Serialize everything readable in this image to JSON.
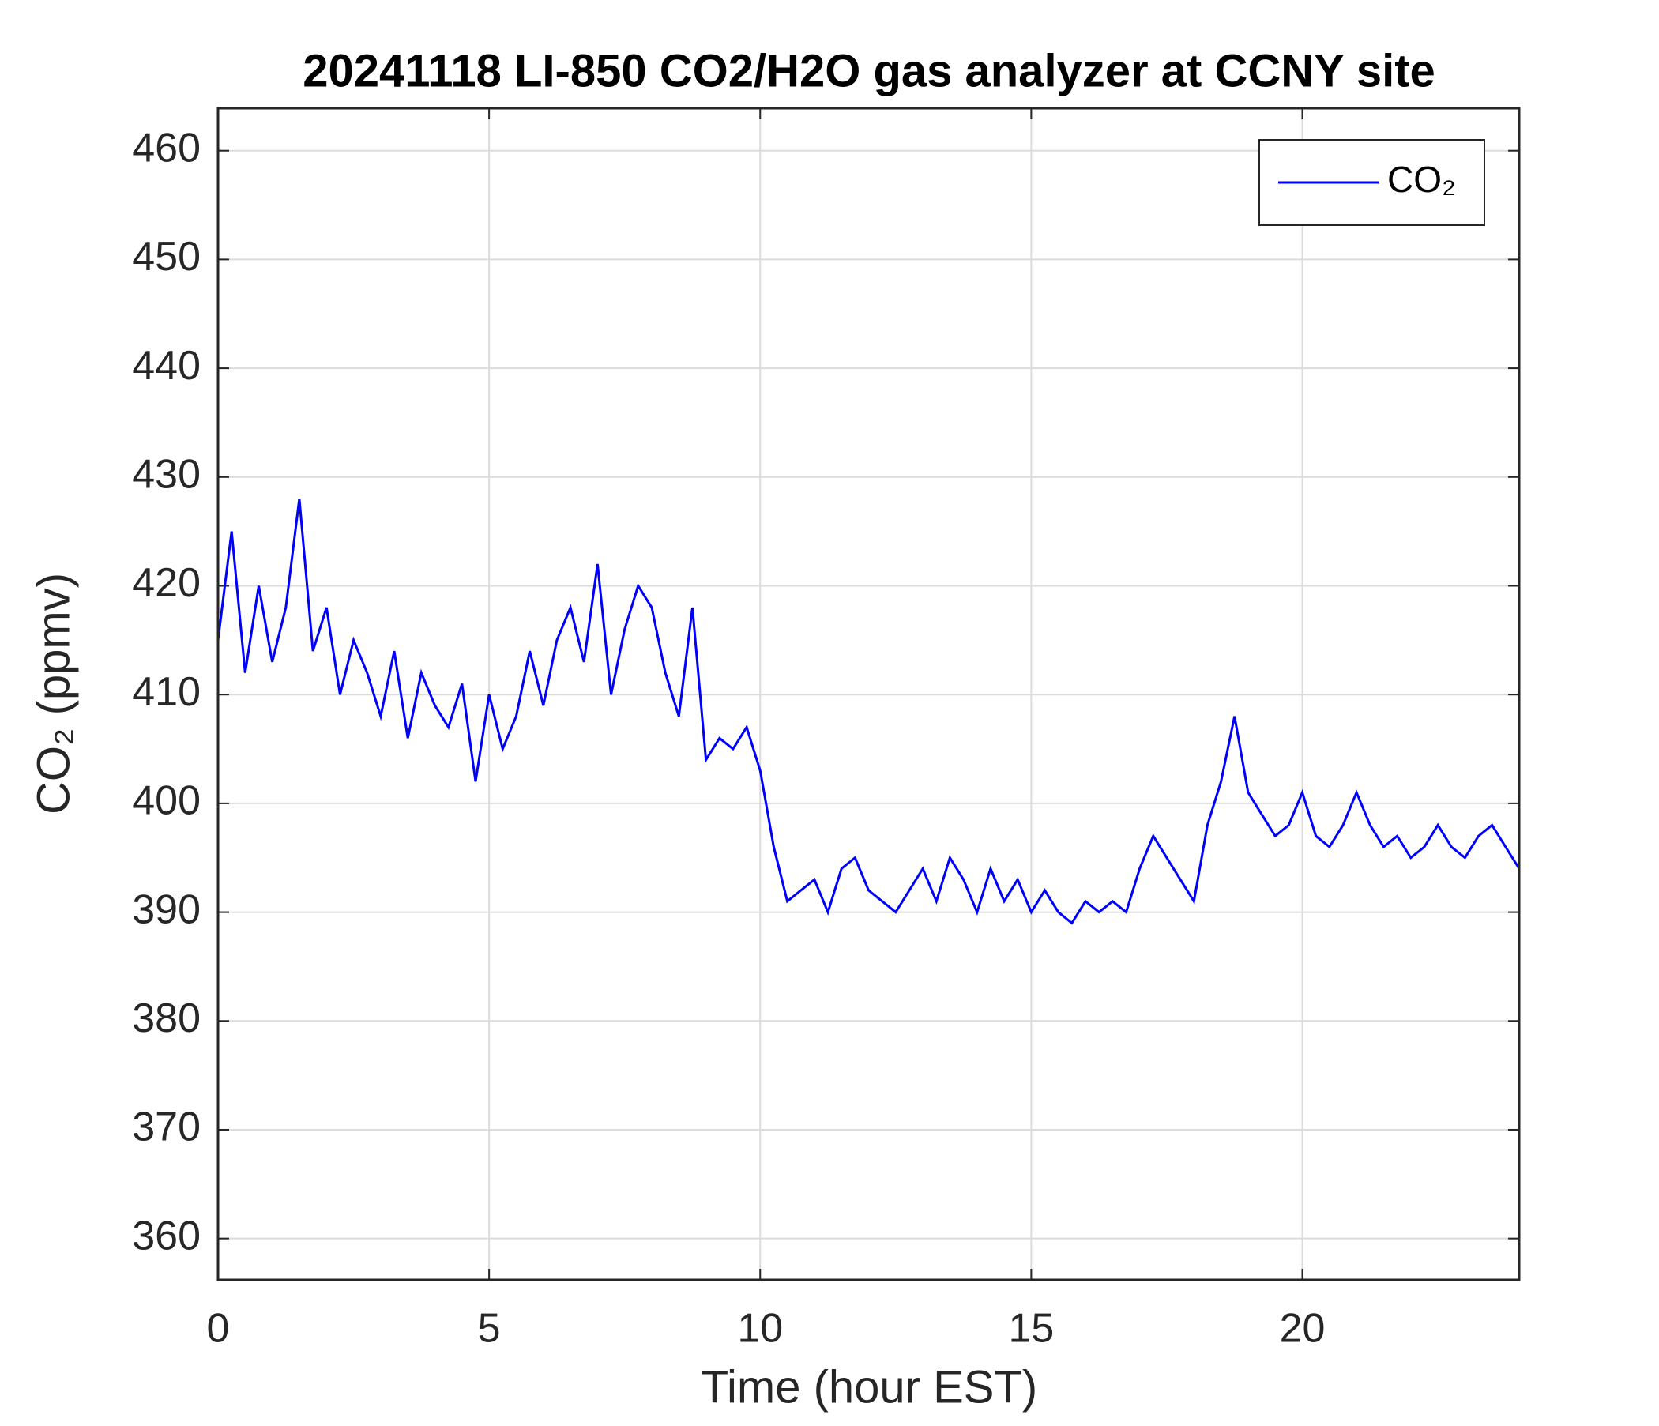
{
  "chart_data": {
    "type": "line",
    "title": "20241118 LI-850 CO2/H2O gas analyzer at CCNY site",
    "xlabel": "Time (hour EST)",
    "ylabel": "CO₂ (ppmv)",
    "x": [
      0,
      0.25,
      0.5,
      0.75,
      1,
      1.25,
      1.5,
      1.75,
      2,
      2.25,
      2.5,
      2.75,
      3,
      3.25,
      3.5,
      3.75,
      4,
      4.25,
      4.5,
      4.75,
      5,
      5.25,
      5.5,
      5.75,
      6,
      6.25,
      6.5,
      6.75,
      7,
      7.25,
      7.5,
      7.75,
      8,
      8.25,
      8.5,
      8.75,
      9,
      9.25,
      9.5,
      9.75,
      10,
      10.25,
      10.5,
      10.75,
      11,
      11.25,
      11.5,
      11.75,
      12,
      12.25,
      12.5,
      12.75,
      13,
      13.25,
      13.5,
      13.75,
      14,
      14.25,
      14.5,
      14.75,
      15,
      15.25,
      15.5,
      15.75,
      16,
      16.25,
      16.5,
      16.75,
      17,
      17.25,
      17.5,
      17.75,
      18,
      18.25,
      18.5,
      18.75,
      19,
      19.25,
      19.5,
      19.75,
      20,
      20.25,
      20.5,
      20.75,
      21,
      21.25,
      21.5,
      21.75,
      22,
      22.25,
      22.5,
      22.75,
      23,
      23.25,
      23.5,
      23.75,
      24
    ],
    "series": [
      {
        "name": "CO₂",
        "color": "#0000ff",
        "values": [
          415,
          425,
          412,
          420,
          413,
          418,
          428,
          414,
          418,
          410,
          415,
          412,
          408,
          414,
          406,
          412,
          409,
          407,
          411,
          402,
          410,
          405,
          408,
          414,
          409,
          415,
          418,
          413,
          422,
          410,
          416,
          420,
          418,
          412,
          408,
          418,
          404,
          406,
          405,
          407,
          403,
          396,
          391,
          392,
          393,
          390,
          394,
          395,
          392,
          391,
          390,
          392,
          394,
          391,
          395,
          393,
          390,
          394,
          391,
          393,
          390,
          392,
          390,
          389,
          391,
          390,
          391,
          390,
          394,
          397,
          395,
          393,
          391,
          398,
          402,
          408,
          401,
          399,
          397,
          398,
          401,
          397,
          396,
          398,
          401,
          398,
          396,
          397,
          395,
          396,
          398,
          396,
          395,
          397,
          398,
          396,
          394
        ]
      }
    ],
    "xlim": [
      0,
      24
    ],
    "xticks": [
      0,
      5,
      10,
      15,
      20
    ],
    "ylim": [
      356.2,
      463.9
    ],
    "yticks": [
      360,
      370,
      380,
      390,
      400,
      410,
      420,
      430,
      440,
      450,
      460
    ],
    "grid": true,
    "legend": "northeast"
  }
}
